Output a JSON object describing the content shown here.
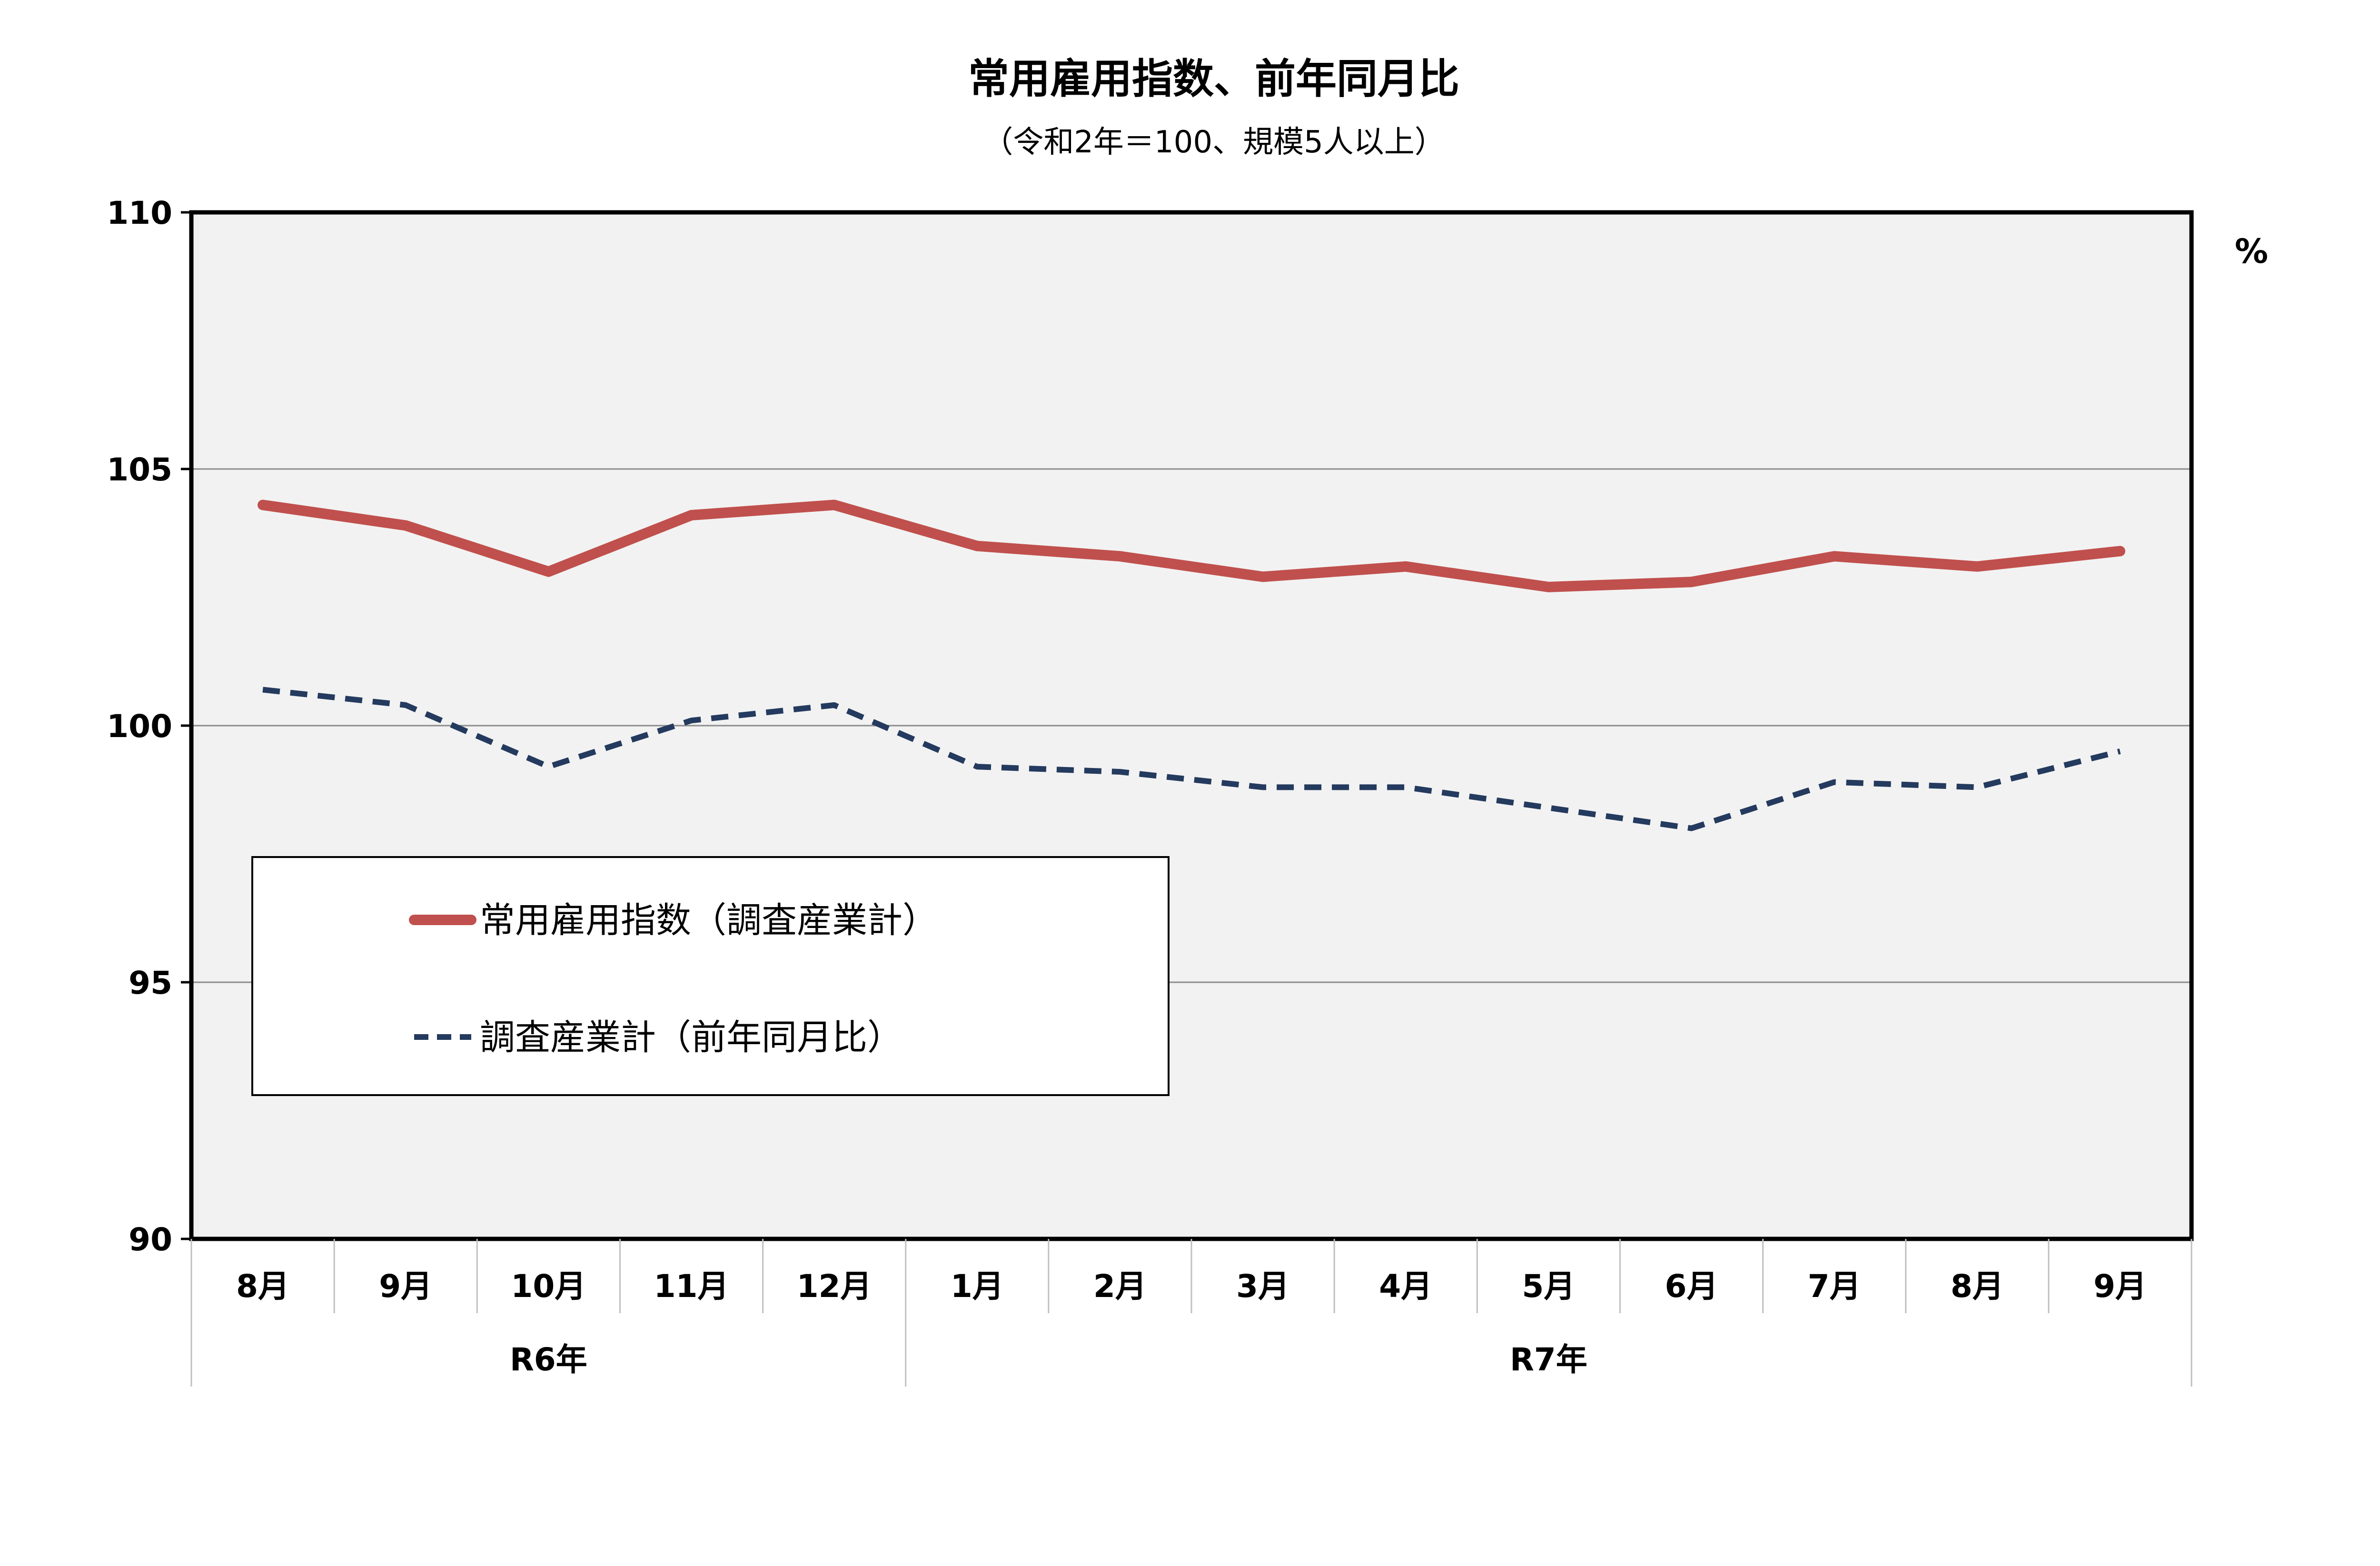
{
  "chart_data": {
    "type": "line",
    "title": "常用雇用指数、前年同月比",
    "subtitle": "（令和2年＝100、規模5人以上）",
    "unit": "%",
    "ylim": [
      90,
      110
    ],
    "yticks": [
      "110",
      "105",
      "100",
      "95",
      "90"
    ],
    "grid": true,
    "legend_position": "lower-left",
    "categories": [
      "8月",
      "9月",
      "10月",
      "11月",
      "12月",
      "1月",
      "2月",
      "3月",
      "4月",
      "5月",
      "6月",
      "7月",
      "8月",
      "9月"
    ],
    "year_groups": [
      {
        "label": "R6年",
        "start": 0,
        "count": 5
      },
      {
        "label": "R7年",
        "start": 5,
        "count": 9
      }
    ],
    "series": [
      {
        "name": "常用雇用指数（調査産業計）",
        "style": "solid",
        "color": "#c0504d",
        "values": [
          104.3,
          103.9,
          103.0,
          104.1,
          104.3,
          103.5,
          103.3,
          102.9,
          103.1,
          102.7,
          102.8,
          103.3,
          103.1,
          103.4
        ]
      },
      {
        "name": "調査産業計（前年同月比）",
        "style": "dashed",
        "color": "#243a5e",
        "values": [
          100.7,
          100.4,
          99.2,
          100.1,
          100.4,
          99.2,
          99.1,
          98.8,
          98.8,
          98.4,
          98.0,
          98.9,
          98.8,
          99.5
        ]
      }
    ]
  }
}
